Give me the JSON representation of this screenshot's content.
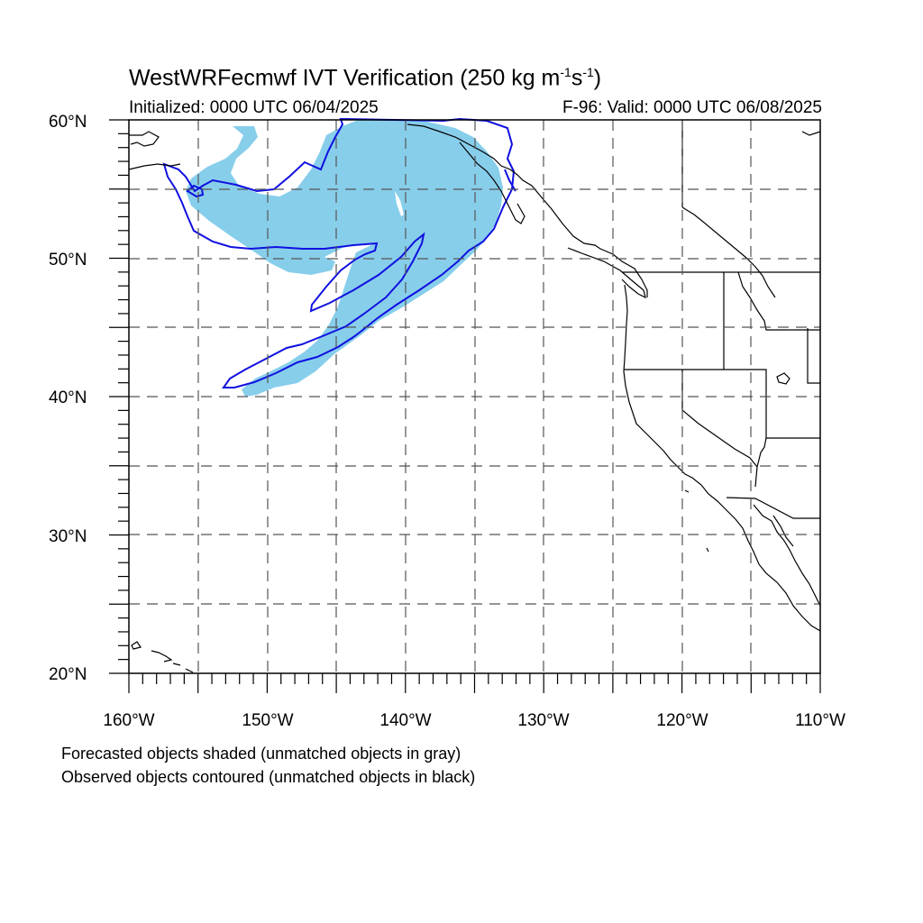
{
  "header": {
    "title_main": "WestWRFecmwf IVT Verification (250 kg m",
    "title_exp1": "-1",
    "title_mid": "s",
    "title_exp2": "-1",
    "title_end": ")",
    "initialized": "Initialized: 0000 UTC 06/04/2025",
    "valid": "F-96: Valid: 0000 UTC 06/08/2025"
  },
  "axes": {
    "lat_labels": [
      "60°N",
      "50°N",
      "40°N",
      "30°N",
      "20°N"
    ],
    "lon_labels": [
      "160°W",
      "150°W",
      "140°W",
      "130°W",
      "120°W",
      "110°W"
    ]
  },
  "legend": {
    "forecast_note": "Forecasted objects shaded (unmatched objects in gray)",
    "observed_note": "Observed objects contoured (unmatched objects in black)"
  },
  "colors": {
    "forecast_fill": "#87ceeb",
    "observed_contour": "#1010e0",
    "coastline": "#000000",
    "grid": "#555555"
  }
}
